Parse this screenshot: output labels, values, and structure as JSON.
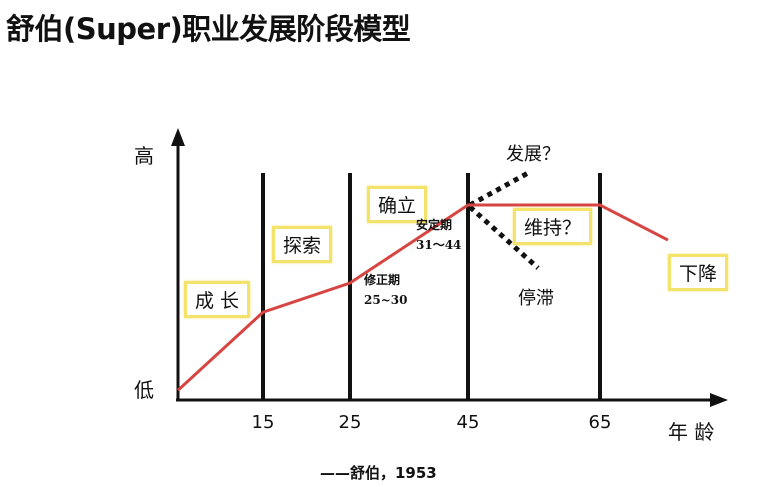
{
  "title": "舒伯(Super)职业发展阶段模型",
  "axis": {
    "y_high": "高",
    "y_low": "低",
    "x_label": "年 龄"
  },
  "x_ticks": [
    "15",
    "25",
    "45",
    "65"
  ],
  "stages": [
    {
      "label": "成 长"
    },
    {
      "label": "探索"
    },
    {
      "label": "确立"
    },
    {
      "label": "维持？"
    },
    {
      "label": "下降"
    }
  ],
  "sub_periods": [
    {
      "name": "修正期",
      "range": "25~30"
    },
    {
      "name": "安定期",
      "range": "31～44"
    }
  ],
  "branches": {
    "up": "发展？",
    "down": "停滞"
  },
  "citation": "——舒伯，1953",
  "chart_data": {
    "type": "line",
    "x": [
      0,
      15,
      25,
      45,
      65,
      75
    ],
    "y_level": [
      5,
      45,
      60,
      100,
      100,
      82
    ],
    "stage_boundaries": [
      15,
      25,
      45,
      65
    ],
    "colors": {
      "line": "#d64541",
      "stage_box": "#f3e36a",
      "axis": "#111111"
    }
  }
}
